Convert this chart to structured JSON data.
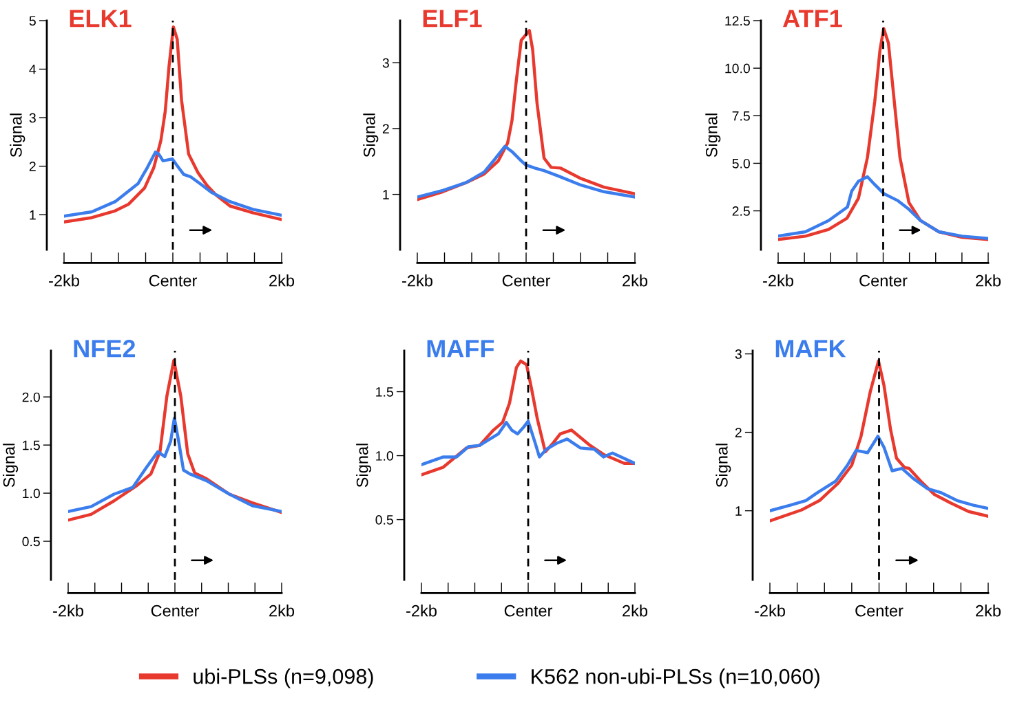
{
  "chart_data": [
    {
      "type": "line",
      "title": "ELK1",
      "ylabel": "Signal",
      "xlim": [
        -2,
        2
      ],
      "xticks": [
        {
          "value": -2,
          "label": "-2kb"
        },
        {
          "value": -1.5,
          "label": null
        },
        {
          "value": -1,
          "label": null
        },
        {
          "value": -0.5,
          "label": null
        },
        {
          "value": 0,
          "label": "Center"
        },
        {
          "value": 0.5,
          "label": null
        },
        {
          "value": 1,
          "label": null
        },
        {
          "value": 1.5,
          "label": null
        },
        {
          "value": 2,
          "label": "2kb"
        }
      ],
      "ylim": [
        0.28,
        5
      ],
      "yticks": [
        1,
        2,
        3,
        4,
        5
      ],
      "ref_lines": [
        {
          "axis": "x",
          "value": 0,
          "color": "#000000",
          "line_style": "dashed"
        }
      ],
      "legend": "bottom",
      "series": [
        {
          "name": "ubi-PLSs (n=9,098)",
          "color": "#e8392f",
          "x": [
            -2,
            -1.49,
            -1.06,
            -0.81,
            -0.52,
            -0.35,
            -0.22,
            -0.14,
            -0.07,
            0.01,
            0.08,
            0.16,
            0.29,
            0.46,
            0.63,
            0.79,
            1.05,
            1.47,
            2
          ],
          "values": [
            0.85,
            0.94,
            1.08,
            1.22,
            1.55,
            1.97,
            2.53,
            3.13,
            4.06,
            4.87,
            4.62,
            3.36,
            2.25,
            1.87,
            1.6,
            1.41,
            1.18,
            1.04,
            0.9
          ]
        },
        {
          "name": "K562 non-ubi-PLSs (n=10,060)",
          "color": "#3b7ded",
          "x": [
            -2,
            -1.49,
            -1.06,
            -0.64,
            -0.47,
            -0.32,
            -0.26,
            -0.18,
            -0.01,
            0.08,
            0.2,
            0.33,
            0.5,
            0.71,
            1.05,
            1.47,
            2
          ],
          "values": [
            0.97,
            1.06,
            1.27,
            1.64,
            1.97,
            2.29,
            2.25,
            2.11,
            2.15,
            2.01,
            1.83,
            1.78,
            1.64,
            1.46,
            1.27,
            1.11,
            0.99
          ]
        }
      ]
    },
    {
      "type": "line",
      "title": "ELF1",
      "ylabel": "Signal",
      "xlim": [
        -2,
        2
      ],
      "xticks": [
        {
          "value": -2,
          "label": "-2kb"
        },
        {
          "value": -1.5,
          "label": null
        },
        {
          "value": -1,
          "label": null
        },
        {
          "value": -0.5,
          "label": null
        },
        {
          "value": 0,
          "label": "Center"
        },
        {
          "value": 0.5,
          "label": null
        },
        {
          "value": 1,
          "label": null
        },
        {
          "value": 1.5,
          "label": null
        },
        {
          "value": 2,
          "label": "2kb"
        }
      ],
      "ylim": [
        0.16,
        3.64
      ],
      "yticks": [
        1,
        2,
        3
      ],
      "ref_lines": [
        {
          "axis": "x",
          "value": 0,
          "color": "#000000",
          "line_style": "dashed"
        }
      ],
      "legend": "bottom",
      "series": [
        {
          "name": "ubi-PLSs (n=9,098)",
          "color": "#e8392f",
          "x": [
            -2,
            -1.53,
            -1.1,
            -0.77,
            -0.51,
            -0.34,
            -0.26,
            -0.18,
            -0.09,
            0.06,
            0.12,
            0.2,
            0.33,
            0.46,
            0.63,
            1.01,
            1.43,
            2
          ],
          "values": [
            0.92,
            1.04,
            1.18,
            1.31,
            1.51,
            1.78,
            2.12,
            2.73,
            3.34,
            3.49,
            3.2,
            2.39,
            1.55,
            1.41,
            1.4,
            1.24,
            1.11,
            1.01
          ]
        },
        {
          "name": "K562 non-ubi-PLSs (n=10,060)",
          "color": "#3b7ded",
          "x": [
            -2,
            -1.53,
            -1.1,
            -0.77,
            -0.56,
            -0.39,
            -0.26,
            -0.09,
            -0.01,
            0.16,
            0.33,
            0.59,
            1.01,
            1.43,
            2
          ],
          "values": [
            0.96,
            1.06,
            1.18,
            1.34,
            1.55,
            1.73,
            1.65,
            1.51,
            1.45,
            1.4,
            1.36,
            1.28,
            1.14,
            1.04,
            0.96
          ]
        }
      ]
    },
    {
      "type": "line",
      "title": "ATF1",
      "ylabel": "Signal",
      "xlim": [
        -2,
        2
      ],
      "xticks": [
        {
          "value": -2,
          "label": "-2kb"
        },
        {
          "value": -1.5,
          "label": null
        },
        {
          "value": -1,
          "label": null
        },
        {
          "value": -0.5,
          "label": null
        },
        {
          "value": 0,
          "label": "Center"
        },
        {
          "value": 0.5,
          "label": null
        },
        {
          "value": 1,
          "label": null
        },
        {
          "value": 1.5,
          "label": null
        },
        {
          "value": 2,
          "label": "2kb"
        }
      ],
      "ylim": [
        0.46,
        12.5
      ],
      "yticks": [
        2.5,
        {
          "value": 5,
          "label": "5.0"
        },
        7.5,
        {
          "value": 10,
          "label": "10.0"
        },
        12.5
      ],
      "ref_lines": [
        {
          "axis": "x",
          "value": 0,
          "color": "#000000",
          "line_style": "dashed"
        }
      ],
      "legend": "bottom",
      "series": [
        {
          "name": "ubi-PLSs (n=9,098)",
          "color": "#e8392f",
          "x": [
            -2,
            -1.48,
            -1.04,
            -0.69,
            -0.47,
            -0.3,
            -0.16,
            -0.06,
            0.01,
            0.1,
            0.19,
            0.32,
            0.49,
            0.71,
            1.06,
            1.5,
            2
          ],
          "values": [
            0.99,
            1.17,
            1.52,
            2.11,
            3.17,
            5.3,
            8.25,
            10.97,
            12.09,
            11.32,
            8.84,
            5.3,
            2.94,
            1.99,
            1.4,
            1.11,
            0.99
          ]
        },
        {
          "name": "K562 non-ubi-PLSs (n=10,060)",
          "color": "#3b7ded",
          "x": [
            -2,
            -1.48,
            -1.04,
            -0.68,
            -0.6,
            -0.47,
            -0.3,
            -0.16,
            0.01,
            0.27,
            0.49,
            0.71,
            1.06,
            1.5,
            2
          ],
          "values": [
            1.17,
            1.4,
            1.99,
            2.7,
            3.53,
            4.06,
            4.29,
            3.88,
            3.41,
            3.05,
            2.58,
            1.99,
            1.4,
            1.17,
            1.05
          ]
        }
      ]
    },
    {
      "type": "line",
      "title": "NFE2",
      "ylabel": "Signal",
      "xlim": [
        -2,
        2
      ],
      "xticks": [
        {
          "value": -2,
          "label": "-2kb"
        },
        {
          "value": -1.5,
          "label": null
        },
        {
          "value": -1,
          "label": null
        },
        {
          "value": -0.5,
          "label": null
        },
        {
          "value": 0,
          "label": "Center"
        },
        {
          "value": 0.5,
          "label": null
        },
        {
          "value": 1,
          "label": null
        },
        {
          "value": 1.5,
          "label": null
        },
        {
          "value": 2,
          "label": "2kb"
        }
      ],
      "ylim": [
        0.1,
        2.48
      ],
      "yticks": [
        0.5,
        {
          "value": 1,
          "label": "1.0"
        },
        1.5,
        {
          "value": 2,
          "label": "2.0"
        }
      ],
      "ref_lines": [
        {
          "axis": "x",
          "value": 0,
          "color": "#000000",
          "line_style": "dashed"
        }
      ],
      "legend": "bottom",
      "series": [
        {
          "name": "ubi-PLSs (n=9,098)",
          "color": "#e8392f",
          "x": [
            -2,
            -1.57,
            -1.14,
            -0.71,
            -0.45,
            -0.28,
            -0.15,
            -0.02,
            0.11,
            0.24,
            0.37,
            0.59,
            1.02,
            1.45,
            2
          ],
          "values": [
            0.72,
            0.78,
            0.92,
            1.08,
            1.2,
            1.43,
            2.01,
            2.38,
            2.01,
            1.41,
            1.21,
            1.15,
            0.99,
            0.9,
            0.8
          ]
        },
        {
          "name": "K562 non-ubi-PLSs (n=10,060)",
          "color": "#3b7ded",
          "x": [
            -2,
            -1.57,
            -1.14,
            -0.79,
            -0.53,
            -0.32,
            -0.19,
            -0.08,
            -0.01,
            0.07,
            0.16,
            0.28,
            0.59,
            1.02,
            1.45,
            2
          ],
          "values": [
            0.81,
            0.86,
            0.99,
            1.06,
            1.27,
            1.43,
            1.38,
            1.54,
            1.78,
            1.54,
            1.24,
            1.2,
            1.13,
            0.99,
            0.87,
            0.81
          ]
        }
      ]
    },
    {
      "type": "line",
      "title": "MAFF",
      "ylabel": "Signal",
      "xlim": [
        -2,
        2
      ],
      "xticks": [
        {
          "value": -2,
          "label": "-2kb"
        },
        {
          "value": -1.5,
          "label": null
        },
        {
          "value": -1,
          "label": null
        },
        {
          "value": -0.5,
          "label": null
        },
        {
          "value": 0,
          "label": "Center"
        },
        {
          "value": 0.5,
          "label": null
        },
        {
          "value": 1,
          "label": null
        },
        {
          "value": 1.5,
          "label": null
        },
        {
          "value": 2,
          "label": "2kb"
        }
      ],
      "ylim": [
        0.03,
        1.82
      ],
      "yticks": [
        0.5,
        {
          "value": 1,
          "label": "1.0"
        },
        1.5
      ],
      "ref_lines": [
        {
          "axis": "x",
          "value": 0,
          "color": "#000000",
          "line_style": "dashed"
        }
      ],
      "legend": "bottom",
      "series": [
        {
          "name": "ubi-PLSs (n=9,098)",
          "color": "#e8392f",
          "x": [
            -2,
            -1.59,
            -1.16,
            -0.91,
            -0.65,
            -0.48,
            -0.35,
            -0.22,
            -0.14,
            -0.03,
            0.06,
            0.17,
            0.32,
            0.47,
            0.6,
            0.81,
            1.16,
            1.41,
            1.8,
            2
          ],
          "values": [
            0.85,
            0.91,
            1.06,
            1.08,
            1.2,
            1.26,
            1.41,
            1.69,
            1.74,
            1.71,
            1.53,
            1.29,
            1.03,
            1.1,
            1.17,
            1.2,
            1.08,
            1.01,
            0.94,
            0.94
          ]
        },
        {
          "name": "K562 non-ubi-PLSs (n=10,060)",
          "color": "#3b7ded",
          "x": [
            -2,
            -1.59,
            -1.34,
            -1.12,
            -0.91,
            -0.56,
            -0.41,
            -0.31,
            -0.2,
            -0.09,
            0,
            0.13,
            0.21,
            0.34,
            0.55,
            0.73,
            0.98,
            1.24,
            1.41,
            1.58,
            2
          ],
          "values": [
            0.93,
            0.99,
            0.99,
            1.07,
            1.08,
            1.17,
            1.26,
            1.2,
            1.17,
            1.22,
            1.27,
            1.1,
            0.99,
            1.05,
            1.1,
            1.13,
            1.06,
            1.05,
            0.99,
            1.02,
            0.94
          ]
        }
      ]
    },
    {
      "type": "line",
      "title": "MAFK",
      "ylabel": "Signal",
      "xlim": [
        -2,
        2
      ],
      "xticks": [
        {
          "value": -2,
          "label": "-2kb"
        },
        {
          "value": -1.5,
          "label": null
        },
        {
          "value": -1,
          "label": null
        },
        {
          "value": -0.5,
          "label": null
        },
        {
          "value": 0,
          "label": "Center"
        },
        {
          "value": 0.5,
          "label": null
        },
        {
          "value": 1,
          "label": null
        },
        {
          "value": 1.5,
          "label": null
        },
        {
          "value": 2,
          "label": "2kb"
        }
      ],
      "ylim": [
        0.12,
        3.04
      ],
      "yticks": [
        1,
        2,
        3
      ],
      "ref_lines": [
        {
          "axis": "x",
          "value": 0,
          "color": "#000000",
          "line_style": "dashed"
        }
      ],
      "legend": "bottom",
      "series": [
        {
          "name": "ubi-PLSs (n=9,098)",
          "color": "#e8392f",
          "x": [
            -2,
            -1.42,
            -1.09,
            -0.75,
            -0.5,
            -0.33,
            -0.16,
            -0.01,
            0.09,
            0.21,
            0.32,
            0.47,
            0.55,
            0.76,
            1.01,
            1.31,
            1.64,
            2
          ],
          "values": [
            0.87,
            1.01,
            1.13,
            1.35,
            1.58,
            1.95,
            2.52,
            2.91,
            2.6,
            2.04,
            1.67,
            1.55,
            1.54,
            1.38,
            1.21,
            1.1,
            0.99,
            0.93
          ]
        },
        {
          "name": "K562 non-ubi-PLSs (n=10,060)",
          "color": "#3b7ded",
          "x": [
            -2,
            -1.63,
            -1.34,
            -1.13,
            -0.79,
            -0.58,
            -0.42,
            -0.21,
            -0.02,
            0.09,
            0.24,
            0.42,
            0.63,
            0.89,
            1.14,
            1.43,
            1.73,
            2
          ],
          "values": [
            1.0,
            1.07,
            1.13,
            1.23,
            1.38,
            1.58,
            1.77,
            1.74,
            1.95,
            1.81,
            1.51,
            1.54,
            1.41,
            1.28,
            1.23,
            1.13,
            1.07,
            1.03
          ]
        }
      ]
    }
  ]
}
